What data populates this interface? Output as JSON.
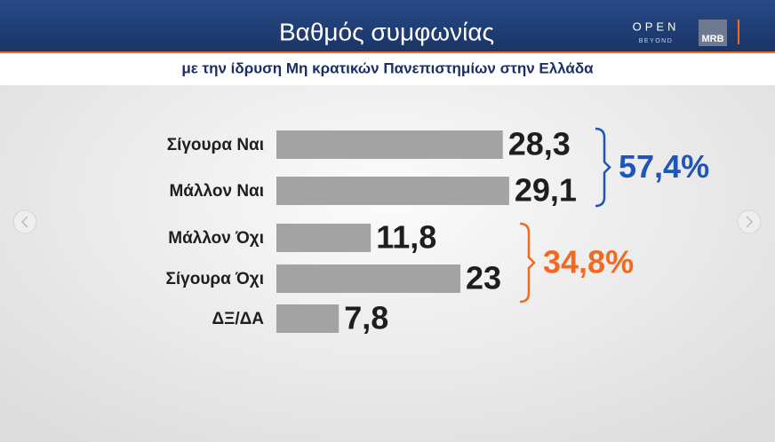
{
  "chart_data": {
    "type": "bar",
    "title": "Βαθμός συμφωνίας",
    "subtitle": "με την ίδρυση Μη κρατικών Πανεπιστημίων στην Ελλάδα",
    "categories": [
      "Σίγουρα Ναι",
      "Μάλλον Ναι",
      "Μάλλον Όχι",
      "Σίγουρα Όχι",
      "ΔΞ/ΔΑ"
    ],
    "values": [
      28.3,
      29.1,
      11.8,
      23,
      7.8
    ],
    "value_labels": [
      "28,3",
      "29,1",
      "11,8",
      "23",
      "7,8"
    ],
    "color": "#a3a3a3",
    "annotations": [
      {
        "text": "57,4%",
        "color": "#1f55b8"
      },
      {
        "text": "34,8%",
        "color": "#f26a21"
      }
    ],
    "logos": [
      "OPEN",
      "BEYOND",
      "MRB"
    ]
  }
}
